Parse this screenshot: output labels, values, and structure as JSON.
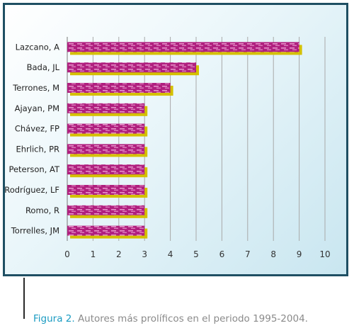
{
  "chart_data": {
    "type": "bar",
    "orientation": "horizontal",
    "categories": [
      "Lazcano, A",
      "Bada, JL",
      "Terrones, M",
      "Ajayan, PM",
      "Chávez, FP",
      "Ehrlich, PR",
      "Peterson, AT",
      "Rodríguez, LF",
      "Romo, R",
      "Torrelles, JM"
    ],
    "values": [
      9,
      5,
      4,
      3,
      3,
      3,
      3,
      3,
      3,
      3
    ],
    "xlim": [
      0,
      10
    ],
    "xticks": [
      "0",
      "1",
      "2",
      "3",
      "4",
      "5",
      "6",
      "7",
      "8",
      "9",
      "10"
    ],
    "grid": "vertical",
    "title": "",
    "xlabel": "",
    "ylabel": ""
  },
  "caption": {
    "label": "Figura 2.",
    "text": " Autores más prolíficos en el periodo 1995-2004."
  },
  "colors": {
    "frame_border": "#1f4f63",
    "bar_fill": "#b0207f",
    "bar_shadow": "#d4c000",
    "bar_pattern": "#f0a6d6",
    "grid": "#a9a9a9",
    "caption_label": "#1a9bc2",
    "caption_text": "#8a8a8a"
  }
}
